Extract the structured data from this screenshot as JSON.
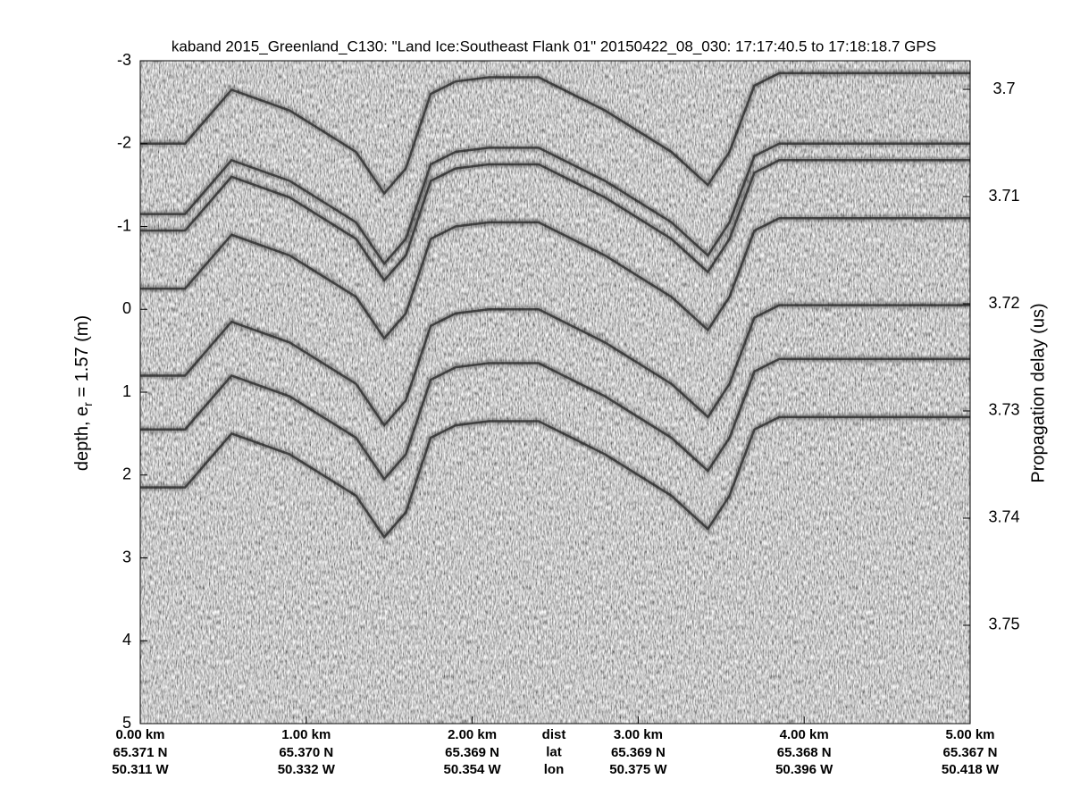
{
  "chart_data": {
    "type": "echogram",
    "title": "kaband 2015_Greenland_C130: \"Land Ice:Southeast Flank 01\"  20150422_08_030: 17:17:40.5 to 17:18:18.7 GPS",
    "ylabel_parts": [
      "depth, e",
      "r",
      " = 1.57 (m)"
    ],
    "y2label": "Propagation delay (us)",
    "xlim": [
      0,
      5
    ],
    "ylim": [
      -3,
      5
    ],
    "yreverse": true,
    "yticks": [
      -3,
      -2,
      -1,
      0,
      1,
      2,
      3,
      4,
      5
    ],
    "y2lim": [
      3.69733,
      3.75917
    ],
    "y2ticks": [
      3.7,
      3.71,
      3.72,
      3.73,
      3.74,
      3.75
    ],
    "xticks": [
      {
        "value": 0,
        "label": "0.00 km"
      },
      {
        "value": 1,
        "label": "1.00 km"
      },
      {
        "value": 2,
        "label": "2.00 km"
      },
      {
        "value": 3,
        "label": "3.00 km"
      },
      {
        "value": 4,
        "label": "4.00 km"
      },
      {
        "value": 5,
        "label": "5.00 km"
      }
    ],
    "lat_labels": [
      "65.371 N",
      "65.370 N",
      "65.369 N",
      "65.369 N",
      "65.368 N",
      "65.367 N"
    ],
    "lon_labels": [
      "50.311 W",
      "50.332 W",
      "50.354 W",
      "50.375 W",
      "50.396 W",
      "50.418 W"
    ],
    "row_labels": [
      "dist",
      "lat",
      "lon"
    ],
    "layer_color": "#2a2a2a",
    "layers": {
      "x": [
        0,
        0.27,
        0.55,
        0.9,
        1.3,
        1.47,
        1.6,
        1.75,
        1.9,
        2.1,
        2.4,
        2.8,
        3.2,
        3.42,
        3.55,
        3.7,
        3.85,
        4.2,
        5.0
      ],
      "depths": [
        [
          -2.0,
          -2.0,
          -2.65,
          -2.4,
          -1.9,
          -1.4,
          -1.7,
          -2.6,
          -2.75,
          -2.8,
          -2.8,
          -2.4,
          -1.9,
          -1.5,
          -1.9,
          -2.7,
          -2.85,
          -2.85,
          -2.85
        ],
        [
          -1.15,
          -1.15,
          -1.8,
          -1.55,
          -1.05,
          -0.55,
          -0.85,
          -1.75,
          -1.9,
          -1.95,
          -1.95,
          -1.55,
          -1.05,
          -0.65,
          -1.05,
          -1.85,
          -2.0,
          -2.0,
          -2.0
        ],
        [
          -0.95,
          -0.95,
          -1.6,
          -1.35,
          -0.85,
          -0.35,
          -0.65,
          -1.55,
          -1.7,
          -1.75,
          -1.75,
          -1.35,
          -0.85,
          -0.45,
          -0.85,
          -1.65,
          -1.8,
          -1.8,
          -1.8
        ],
        [
          -0.25,
          -0.25,
          -0.9,
          -0.65,
          -0.15,
          0.35,
          0.05,
          -0.85,
          -1.0,
          -1.05,
          -1.05,
          -0.65,
          -0.15,
          0.25,
          -0.15,
          -0.95,
          -1.1,
          -1.1,
          -1.1
        ],
        [
          0.8,
          0.8,
          0.15,
          0.4,
          0.9,
          1.4,
          1.1,
          0.2,
          0.05,
          0.0,
          0.0,
          0.4,
          0.9,
          1.3,
          0.9,
          0.1,
          -0.05,
          -0.05,
          -0.05
        ],
        [
          1.45,
          1.45,
          0.8,
          1.05,
          1.55,
          2.05,
          1.75,
          0.85,
          0.7,
          0.65,
          0.65,
          1.05,
          1.55,
          1.95,
          1.55,
          0.75,
          0.6,
          0.6,
          0.6
        ],
        [
          2.15,
          2.15,
          1.5,
          1.75,
          2.25,
          2.75,
          2.45,
          1.55,
          1.4,
          1.35,
          1.35,
          1.75,
          2.25,
          2.65,
          2.25,
          1.45,
          1.3,
          1.3,
          1.3
        ]
      ]
    }
  }
}
